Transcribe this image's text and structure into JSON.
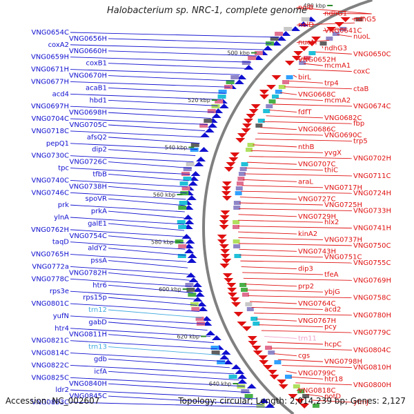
{
  "title": "Halobacterium sp. NRC-1, complete genome",
  "footer": {
    "accession": "Accession: NC_002607",
    "summary": "Topology: circular; Length: 2,014,239 bp; Genes: 2,127"
  },
  "colors": {
    "forward": "#1010d0",
    "reverse": "#e01010",
    "trna_forward": "#40a8e0",
    "trna_reverse": "#f0a0c8",
    "backbone": "#808080",
    "tick": "#2a8a2a"
  },
  "ticks": [
    "480 kbp",
    "500 kbp",
    "520 kbp",
    "540 kbp",
    "560 kbp",
    "580 kbp",
    "600 kbp",
    "620 kbp",
    "640 kbp"
  ],
  "left_labels": [
    "VNG0654C",
    "VNG0656H",
    "coxA2",
    "VNG0660H",
    "VNG0659H",
    "coxB1",
    "VNG0671H",
    "VNG0670H",
    "VNG0677H",
    "acaB1",
    "acd4",
    "hbd1",
    "VNG0697H",
    "VNG0698H",
    "VNG0704C",
    "VNG0705C",
    "VNG0718C",
    "afsQ2",
    "pepQ1",
    "dip2",
    "VNG0730C",
    "VNG0726C",
    "tpc",
    "tfbB",
    "VNG0740C",
    "VNG0738H",
    "VNG0746C",
    "spoVR",
    "prk",
    "prkA",
    "ylnA",
    "galE1",
    "VNG0762H",
    "VNG0754C",
    "taqD",
    "aldY2",
    "VNG0765H",
    "pssA",
    "VNG0772a",
    "VNG0782H",
    "VNG0778C",
    "htr6",
    "rps3e",
    "rps15p",
    "VNG0801C",
    "trn12",
    "yufN",
    "gabD",
    "htr4",
    "VNG0811H",
    "VNG0821C",
    "trn13",
    "VNG0814C",
    "gdb",
    "VNG0822C",
    "icfA",
    "VNG0825C",
    "VNG0840H",
    "ldr2",
    "VNG0845C",
    "VNG0853C"
  ],
  "right_labels": [
    "nolB",
    "ndhG1",
    "ndhG5",
    "nolD",
    "VNG0641C",
    "nuoL",
    "nuoM",
    "ndhG3",
    "VNG0650C",
    "VNG0652H",
    "mcmA1",
    "coxC",
    "birL",
    "trp4",
    "ctaB",
    "VNG0668C",
    "mcmA2",
    "VNG0674C",
    "fdfT",
    "VNG0682C",
    "fbp",
    "VNG0686C",
    "VNG0690C",
    "trp5",
    "nthB",
    "yvgX",
    "VNG0702H",
    "VNG0707C",
    "thiC",
    "VNG0711C",
    "araL",
    "VNG0717H",
    "VNG0724H",
    "VNG0727C",
    "VNG0725H",
    "VNG0733H",
    "VNG0729H",
    "hlx2",
    "VNG0741H",
    "kinA2",
    "VNG0737H",
    "VNG0750C",
    "VNG0743H",
    "VNG0751C",
    "VNG0755C",
    "dip3",
    "tfeA",
    "VNG0769H",
    "prp2",
    "ybjG",
    "VNG0758C",
    "VNG0764C",
    "acd2",
    "VNG0780H",
    "VNG0767H",
    "pcy",
    "VNG0779C",
    "trn11",
    "hcpC",
    "VNG0804C",
    "cgs",
    "VNG0798H",
    "VNG0810H",
    "VNG0799C",
    "htr18",
    "VNG0800H",
    "VNG0818C",
    "potD",
    "yfmJ"
  ]
}
